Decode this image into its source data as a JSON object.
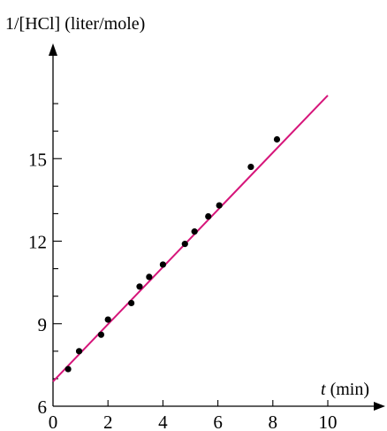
{
  "chart_data": {
    "type": "scatter",
    "title": "",
    "ylabel": "1/[HCl] (liter/mole)",
    "xlabel_var": "t",
    "xlabel_unit": "(min)",
    "xlim": [
      0,
      10
    ],
    "ylim": [
      6,
      18
    ],
    "x_ticks": [
      0,
      2,
      4,
      6,
      8,
      10
    ],
    "y_tick_labels": [
      6,
      9,
      12,
      15
    ],
    "y_minor_ticks": [
      7,
      8,
      10,
      11,
      13,
      14,
      16,
      17
    ],
    "grid": false,
    "points": [
      {
        "x": 0.55,
        "y": 7.35
      },
      {
        "x": 0.95,
        "y": 8.0
      },
      {
        "x": 1.75,
        "y": 8.6
      },
      {
        "x": 2.0,
        "y": 9.15
      },
      {
        "x": 2.85,
        "y": 9.75
      },
      {
        "x": 3.15,
        "y": 10.35
      },
      {
        "x": 3.5,
        "y": 10.7
      },
      {
        "x": 4.0,
        "y": 11.15
      },
      {
        "x": 4.8,
        "y": 11.9
      },
      {
        "x": 5.15,
        "y": 12.35
      },
      {
        "x": 5.65,
        "y": 12.9
      },
      {
        "x": 6.05,
        "y": 13.3
      },
      {
        "x": 7.2,
        "y": 14.7
      },
      {
        "x": 8.15,
        "y": 15.7
      }
    ],
    "fit_line": {
      "x": [
        0,
        10
      ],
      "y": [
        6.9,
        17.3
      ]
    },
    "colors": {
      "line": "#d6157a",
      "points": "#000000",
      "axes": "#000000"
    }
  }
}
